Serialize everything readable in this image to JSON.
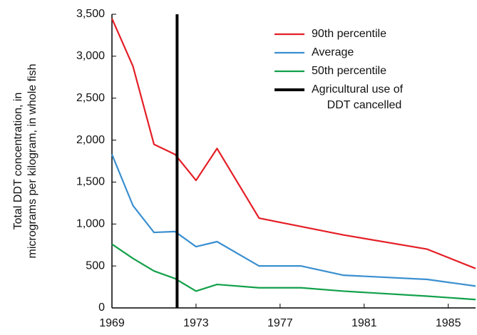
{
  "chart_data": {
    "type": "line",
    "y_label": [
      "Total DDT concentration, in",
      "micrograms per kilogram, in whole fish"
    ],
    "x": [
      1969,
      1970,
      1971,
      1972,
      1973,
      1974,
      1976,
      1978,
      1980,
      1984,
      1986.3
    ],
    "series": [
      {
        "name": "90th percentile",
        "color": "#e41e26",
        "values": [
          3450,
          2880,
          1950,
          1830,
          1520,
          1900,
          1070,
          970,
          870,
          700,
          470
        ]
      },
      {
        "name": "Average",
        "color": "#3a8fd0",
        "values": [
          1830,
          1220,
          900,
          910,
          730,
          790,
          500,
          500,
          390,
          340,
          260
        ]
      },
      {
        "name": "50th percentile",
        "color": "#12a04a",
        "values": [
          760,
          590,
          440,
          350,
          200,
          280,
          240,
          240,
          200,
          140,
          100
        ]
      }
    ],
    "vline": {
      "name": [
        "Agricultural use of",
        "DDT cancelled"
      ],
      "x": 1972.1,
      "color": "#000000"
    },
    "xlim": [
      1969,
      1986.3
    ],
    "ylim": [
      0,
      3500
    ],
    "xticks": [
      1969,
      1973,
      1977,
      1981,
      1985
    ],
    "yticks": [
      0,
      500,
      {
        "value": 1000,
        "label": "1,000"
      },
      {
        "value": 1500,
        "label": "1,500"
      },
      {
        "value": 2000,
        "label": "2,000"
      },
      {
        "value": 2500,
        "label": "2,500"
      },
      {
        "value": 3000,
        "label": "3,000"
      },
      {
        "value": 3500,
        "label": "3,500"
      }
    ]
  }
}
